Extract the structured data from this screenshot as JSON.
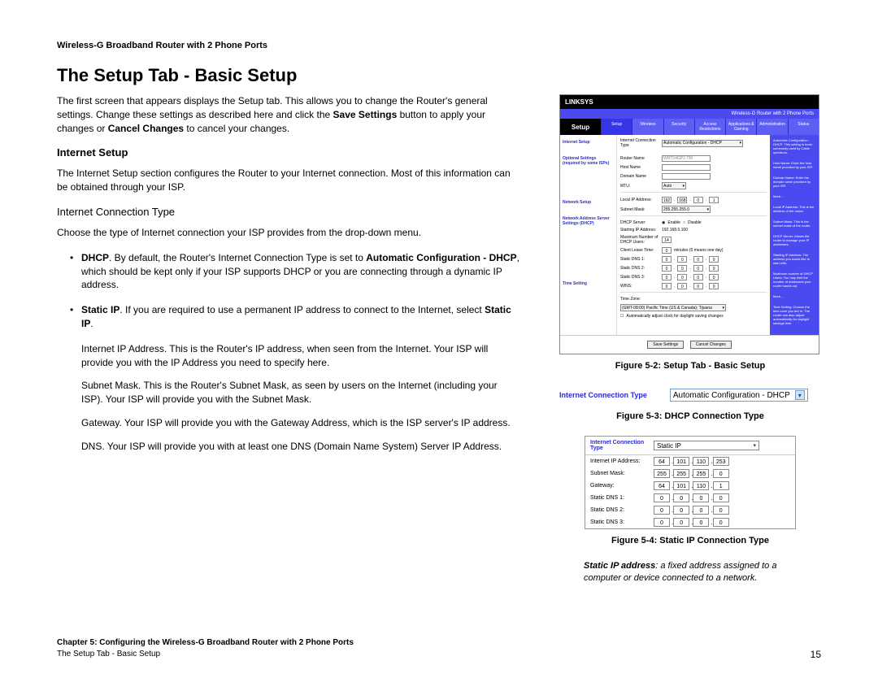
{
  "header": "Wireless-G Broadband Router with 2 Phone Ports",
  "title": "The Setup Tab - Basic Setup",
  "p1a": "The first screen that appears displays the Setup tab. This allows you to change the Router's general settings. Change these settings as described here and click the ",
  "p1b": "Save Settings",
  "p1c": " button to apply your changes or ",
  "p1d": "Cancel Changes",
  "p1e": " to cancel your changes.",
  "h2_internet": "Internet Setup",
  "p2": "The Internet Setup section configures the Router to your Internet connection. Most of this information can be obtained through your ISP.",
  "h3_ict": "Internet Connection Type",
  "p3": "Choose the type of Internet connection your ISP provides from the drop-down menu.",
  "bullet1a": "DHCP",
  "bullet1b": ". By default, the Router's Internet Connection Type is set to ",
  "bullet1c": "Automatic Configuration - DHCP",
  "bullet1d": ", which should be kept only if your ISP supports DHCP or you are connecting through a dynamic IP address.",
  "bullet2a": "Static IP",
  "bullet2b": ". If you are required to use a permanent IP address to connect to the Internet, select ",
  "bullet2c": "Static IP",
  "bullet2d": ".",
  "sub1": "Internet IP Address. This is the Router's IP address, when seen from the Internet. Your ISP will provide you with the IP Address you need to specify here.",
  "sub2": "Subnet Mask. This is the Router's Subnet Mask, as seen by users on the Internet (including your ISP). Your ISP will provide you with the Subnet Mask.",
  "sub3": "Gateway. Your ISP will provide you with the Gateway Address, which is the ISP server's IP address.",
  "sub4": "DNS. Your ISP will provide you with at least one DNS (Domain Name System) Server IP Address.",
  "fig52": {
    "caption": "Figure 5-2: Setup Tab - Basic Setup",
    "brand": "LINKSYS",
    "model": "Wireless-G Router with 2 Phone Ports",
    "side": "Setup",
    "tabs": [
      "Setup",
      "Wireless",
      "Security",
      "Access Restrictions",
      "Applications & Gaming",
      "Administration",
      "Status"
    ],
    "sections": {
      "internet": "Internet Setup",
      "optional": "Optional Settings (required by some ISPs)",
      "network": "Network Setup",
      "addr": "Network Address Server Settings (DHCP)",
      "time": "Time Setting"
    },
    "fields": {
      "ict_label": "Internet Connection Type",
      "ict_value": "Automatic Configuration - DHCP",
      "router_name": "Router Name",
      "router_name_v": "WRT54GP2-TM",
      "host": "Host Name",
      "domain": "Domain Name",
      "mtu": "MTU:",
      "mtu_v": "Auto",
      "local_ip": "Local IP Address:",
      "local_ip_v": [
        "192",
        "168",
        "0",
        "1"
      ],
      "subnet": "Subnet Mask:",
      "subnet_v": "255.255.255.0",
      "dhcp_srv": "DHCP Server:",
      "enable": "Enable",
      "disable": "Disable",
      "start_ip": "Starting IP Address:",
      "start_ip_v": "192.168.0.100",
      "max_users": "Maximum Number of DHCP Users:",
      "max_users_v": "14",
      "lease": "Client Lease Time:",
      "lease_v": "0",
      "lease_u": "minutes (0 means one day)",
      "dns1": "Static DNS 1:",
      "dns2": "Static DNS 2:",
      "dns3": "Static DNS 3:",
      "wins": "WINS:",
      "zeros": [
        "0",
        "0",
        "0",
        "0"
      ],
      "tz": "Time Zone:",
      "tz_v": "(GMT-08:00) Pacific Time (US & Canada); Tijuana",
      "dst": "Automatically adjust clock for daylight saving changes"
    },
    "help": {
      "h1": "Automatic Configuration - DHCP: This setting is most commonly used by Cable operators.",
      "h2": "Host Name: Enter the host name provided by your ISP.",
      "h3": "Domain Name: Enter the domain name provided by your ISP.",
      "h4": "More...",
      "h5": "Local IP Address: This is the address of the router.",
      "h6": "Subnet Mask: This is the subnet mask of the router.",
      "h7": "DHCP Server: Allows the router to manage your IP addresses.",
      "h8": "Starting IP Address: The address you would like to start with.",
      "h9": "Maximum number of DHCP Users: You may limit the number of addresses your router hands out.",
      "h10": "More...",
      "h11": "Time Setting: Choose the time zone you are in. The router can also adjust automatically for daylight savings time."
    },
    "save": "Save Settings",
    "cancel": "Cancel Changes"
  },
  "fig53": {
    "caption": "Figure 5-3: DHCP Connection Type",
    "label": "Internet Connection Type",
    "value": "Automatic Configuration - DHCP"
  },
  "fig54": {
    "caption": "Figure 5-4: Static IP Connection Type",
    "ict_label": "Internet Connection Type",
    "ict_value": "Static IP",
    "rows": [
      {
        "label": "Internet IP Address:",
        "oct": [
          "64",
          "101",
          "110",
          "253"
        ]
      },
      {
        "label": "Subnet Mask:",
        "oct": [
          "255",
          "255",
          "255",
          "0"
        ]
      },
      {
        "label": "Gateway:",
        "oct": [
          "64",
          "101",
          "110",
          "1"
        ]
      },
      {
        "label": "Static DNS 1:",
        "oct": [
          "0",
          "0",
          "0",
          "0"
        ]
      },
      {
        "label": "Static DNS 2:",
        "oct": [
          "0",
          "0",
          "0",
          "0"
        ]
      },
      {
        "label": "Static DNS 3:",
        "oct": [
          "0",
          "0",
          "0",
          "0"
        ]
      }
    ]
  },
  "note": {
    "bold": "Static IP address",
    "rest": ": a fixed address assigned to a computer or device connected to a network."
  },
  "footer": {
    "chapter": "Chapter 5: Configuring the Wireless-G Broadband Router with 2 Phone Ports",
    "section": "The Setup Tab - Basic Setup",
    "page": "15"
  }
}
